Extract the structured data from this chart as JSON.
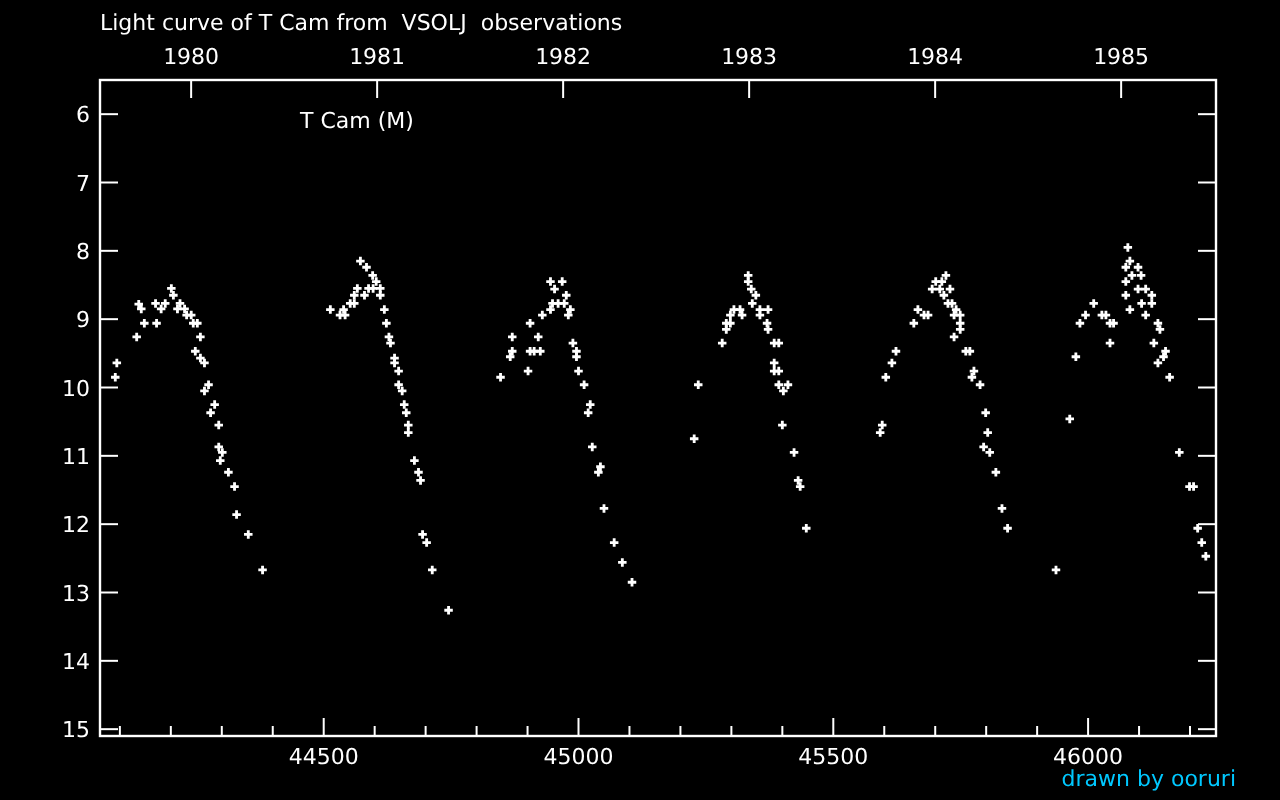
{
  "chart_data": {
    "type": "scatter",
    "title": "Light curve of T Cam from  VSOLJ  observations",
    "annotations": [
      "drawn by ooruri"
    ],
    "x": [
      44091,
      44094,
      44133,
      44137,
      44142,
      44148,
      44170,
      44172,
      44181,
      44189,
      44201,
      44205,
      44213,
      44218,
      44227,
      44231,
      44240,
      44244,
      44252,
      44258,
      44248,
      44258,
      44266,
      44274,
      44266,
      44286,
      44278,
      44294,
      44294,
      44301,
      44297,
      44313,
      44325,
      44329,
      44352,
      44380,
      44513,
      44532,
      44539,
      44542,
      44552,
      44560,
      44560,
      44566,
      44572,
      44580,
      44584,
      44588,
      44596,
      44597,
      44603,
      44611,
      44611,
      44619,
      44623,
      44628,
      44631,
      44639,
      44639,
      44647,
      44647,
      44654,
      44658,
      44662,
      44666,
      44666,
      44678,
      44686,
      44690,
      44694,
      44702,
      44713,
      44745,
      44847,
      44866,
      44870,
      44870,
      44901,
      44905,
      44905,
      44913,
      44921,
      44925,
      44929,
      44945,
      44945,
      44949,
      44953,
      44960,
      44968,
      44972,
      44976,
      44980,
      44984,
      44989,
      44996,
      44996,
      45000,
      45011,
      45023,
      45019,
      45027,
      45043,
      45039,
      45050,
      45070,
      45086,
      45105,
      45227,
      45235,
      45282,
      45290,
      45290,
      45298,
      45298,
      45305,
      45317,
      45321,
      45333,
      45333,
      45339,
      45348,
      45341,
      45356,
      45356,
      45372,
      45370,
      45372,
      45384,
      45393,
      45384,
      45384,
      45393,
      45393,
      45402,
      45411,
      45400,
      45423,
      45431,
      45435,
      45447,
      45592,
      45596,
      45603,
      45615,
      45623,
      45658,
      45666,
      45678,
      45686,
      45694,
      45701,
      45709,
      45713,
      45717,
      45721,
      45725,
      45729,
      45733,
      45741,
      45737,
      45749,
      45749,
      45749,
      45737,
      45760,
      45768,
      45776,
      45772,
      45788,
      45799,
      45803,
      45795,
      45807,
      45819,
      45831,
      45842,
      45937,
      45964,
      45976,
      45984,
      45995,
      46011,
      46027,
      46035,
      46043,
      46050,
      46043,
      46074,
      46078,
      46082,
      46074,
      46074,
      46082,
      46086,
      46098,
      46098,
      46104,
      46105,
      46113,
      46113,
      46125,
      46125,
      46137,
      46141,
      46129,
      46152,
      46148,
      46137,
      46160,
      46179,
      46199,
      46207,
      46215,
      46223,
      46231
    ],
    "series": [
      {
        "name": "T Cam (M)",
        "color": "#ffffff",
        "values": [
          9.85,
          9.64,
          9.26,
          8.78,
          8.85,
          9.06,
          8.77,
          9.06,
          8.85,
          8.77,
          8.55,
          8.65,
          8.85,
          8.77,
          8.85,
          8.94,
          8.94,
          9.06,
          9.06,
          9.26,
          9.47,
          9.57,
          9.64,
          9.96,
          10.05,
          10.25,
          10.37,
          10.55,
          10.87,
          10.95,
          11.07,
          11.24,
          11.45,
          11.86,
          12.15,
          12.67,
          8.86,
          8.94,
          8.86,
          8.94,
          8.77,
          8.77,
          8.65,
          8.55,
          8.15,
          8.65,
          8.24,
          8.55,
          8.36,
          8.55,
          8.45,
          8.65,
          8.55,
          8.86,
          9.06,
          9.26,
          9.35,
          9.57,
          9.64,
          9.76,
          9.96,
          10.05,
          10.25,
          10.37,
          10.55,
          10.66,
          11.07,
          11.24,
          11.36,
          12.15,
          12.27,
          12.67,
          13.26,
          9.85,
          9.55,
          9.47,
          9.26,
          9.76,
          9.47,
          9.06,
          9.47,
          9.26,
          9.47,
          8.94,
          8.45,
          8.86,
          8.77,
          8.56,
          8.77,
          8.45,
          8.77,
          8.65,
          8.94,
          8.86,
          9.35,
          9.47,
          9.55,
          9.76,
          9.96,
          10.25,
          10.37,
          10.87,
          11.16,
          11.24,
          11.77,
          12.27,
          12.56,
          12.85,
          10.75,
          9.96,
          9.35,
          9.15,
          9.06,
          9.06,
          8.94,
          8.86,
          8.86,
          8.94,
          8.36,
          8.45,
          8.56,
          8.65,
          8.77,
          8.86,
          8.94,
          8.86,
          9.06,
          9.15,
          9.35,
          9.35,
          9.64,
          9.76,
          9.76,
          9.96,
          10.05,
          9.96,
          10.55,
          10.95,
          11.36,
          11.45,
          12.06,
          10.66,
          10.55,
          9.85,
          9.64,
          9.47,
          9.06,
          8.86,
          8.94,
          8.94,
          8.56,
          8.45,
          8.56,
          8.45,
          8.65,
          8.36,
          8.77,
          8.56,
          8.77,
          8.86,
          8.94,
          8.94,
          9.06,
          9.15,
          9.26,
          9.47,
          9.47,
          9.76,
          9.85,
          9.96,
          10.37,
          10.66,
          10.87,
          10.95,
          11.24,
          11.77,
          12.06,
          12.67,
          10.46,
          9.55,
          9.06,
          8.94,
          8.77,
          8.94,
          8.94,
          9.06,
          9.06,
          9.35,
          8.24,
          7.95,
          8.15,
          8.45,
          8.65,
          8.86,
          8.36,
          8.24,
          8.56,
          8.36,
          8.77,
          8.56,
          8.94,
          8.65,
          8.77,
          9.06,
          9.15,
          9.35,
          9.47,
          9.55,
          9.64,
          9.85,
          10.95,
          11.45,
          11.45,
          12.06,
          12.27,
          12.47
        ]
      }
    ],
    "marker": "cross",
    "grid": false,
    "xlim": [
      44061,
      46251
    ],
    "xticks": [
      {
        "value": 44100,
        "label": null
      },
      {
        "value": 44200,
        "label": null
      },
      {
        "value": 44300,
        "label": null
      },
      {
        "value": 44400,
        "label": null
      },
      44500,
      {
        "value": 44600,
        "label": null
      },
      {
        "value": 44700,
        "label": null
      },
      {
        "value": 44800,
        "label": null
      },
      {
        "value": 44900,
        "label": null
      },
      45000,
      {
        "value": 45100,
        "label": null
      },
      {
        "value": 45200,
        "label": null
      },
      {
        "value": 45300,
        "label": null
      },
      {
        "value": 45400,
        "label": null
      },
      45500,
      {
        "value": 45600,
        "label": null
      },
      {
        "value": 45700,
        "label": null
      },
      {
        "value": 45800,
        "label": null
      },
      {
        "value": 45900,
        "label": null
      },
      46000,
      {
        "value": 46100,
        "label": null
      },
      {
        "value": 46200,
        "label": null
      }
    ],
    "x2lim": [
      1979.51,
      1985.51
    ],
    "x2ticks": [
      1980,
      1981,
      1982,
      1983,
      1984,
      1985
    ],
    "ylim": [
      15.1,
      5.5
    ],
    "yticks": [
      6,
      7,
      8,
      9,
      10,
      11,
      12,
      13,
      14,
      15
    ]
  }
}
